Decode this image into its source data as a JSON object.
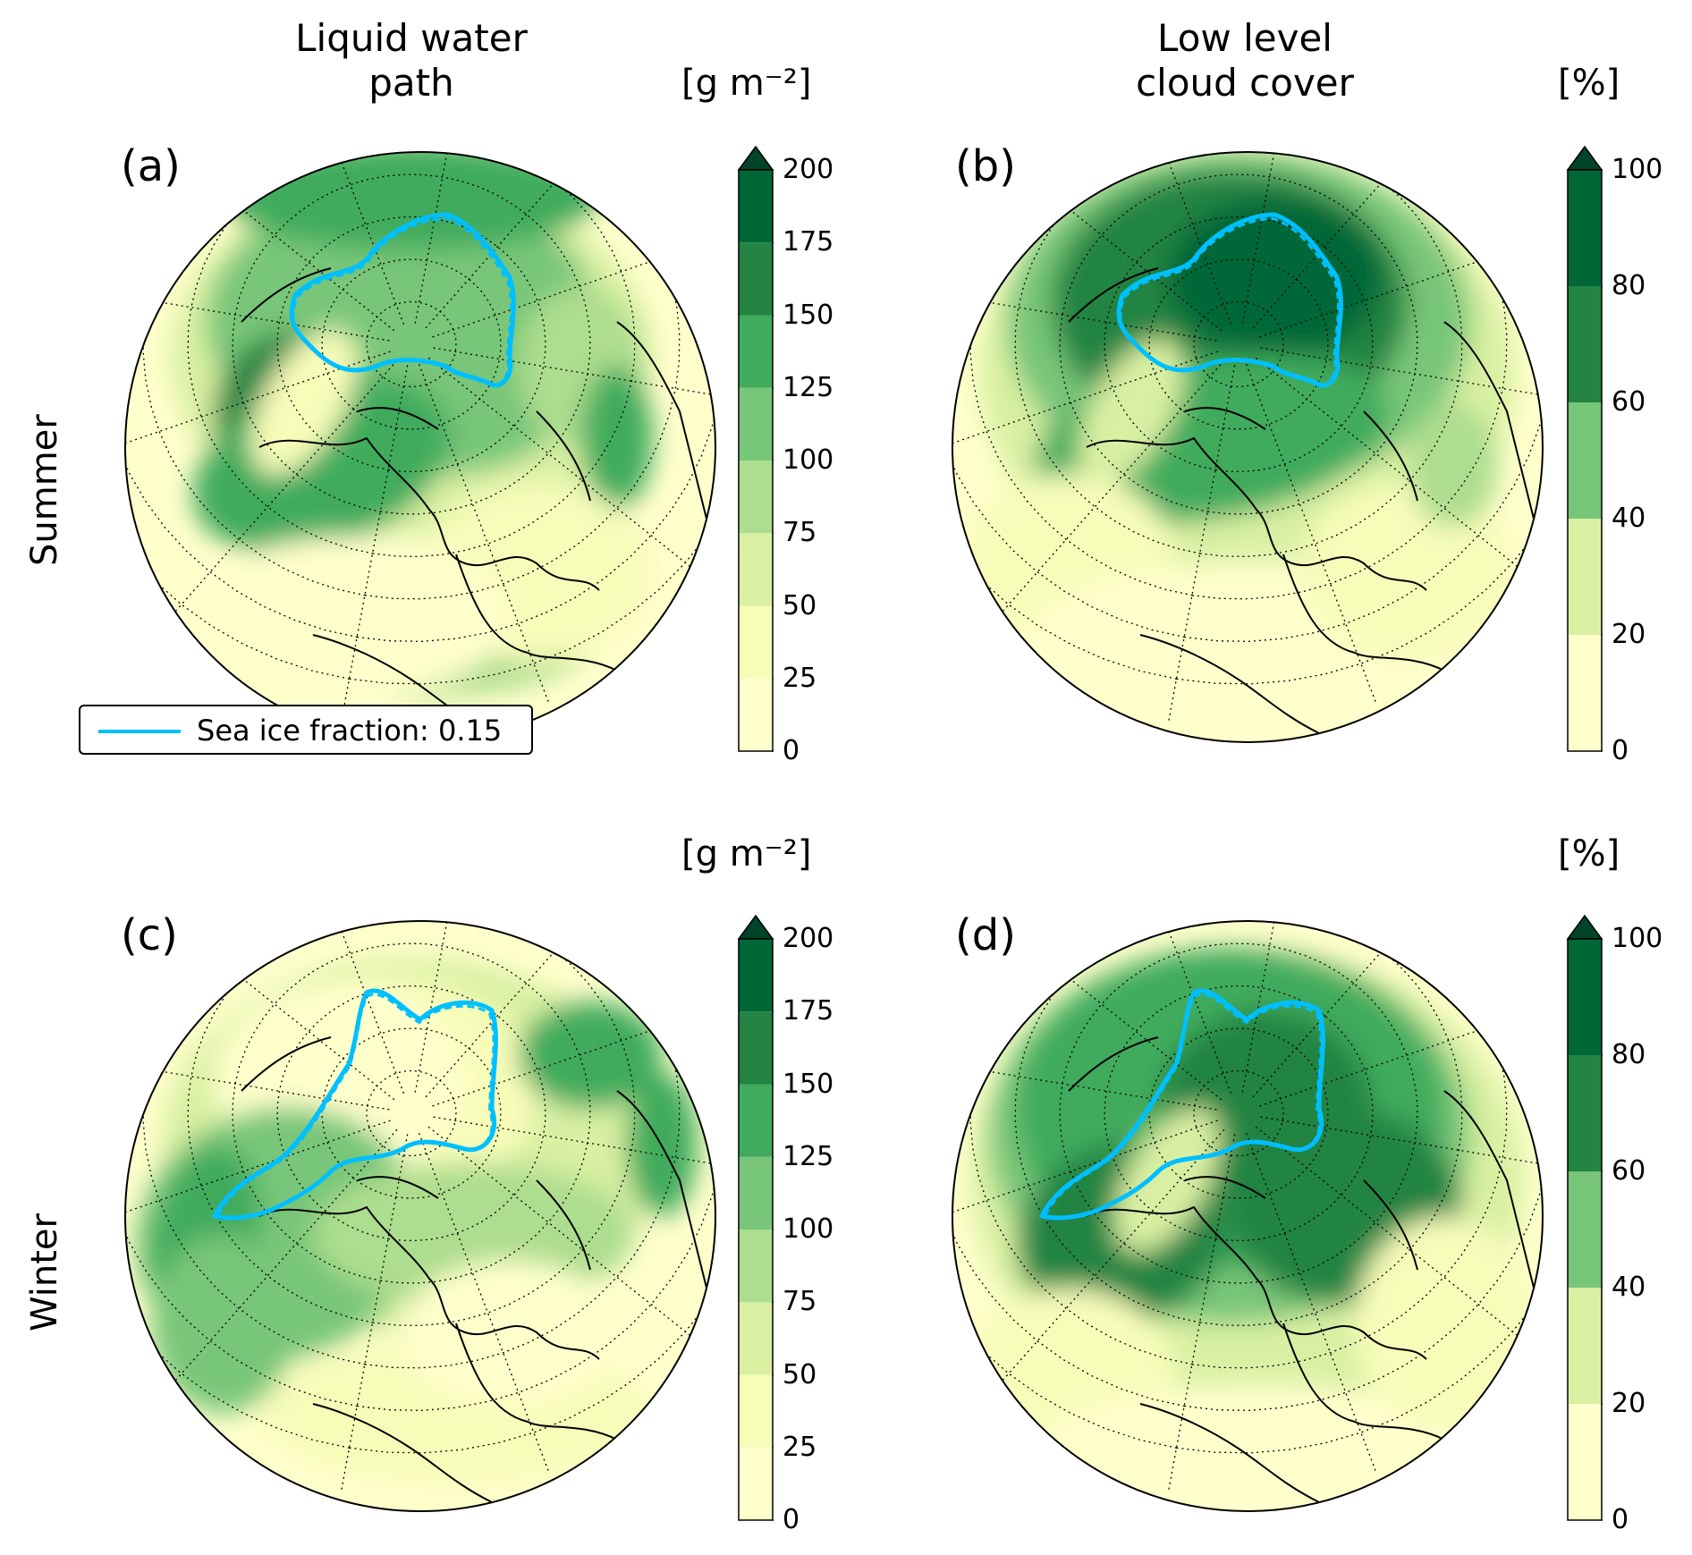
{
  "columns": [
    {
      "title_line1": "Liquid water",
      "title_line2": "path"
    },
    {
      "title_line1": "Low level",
      "title_line2": "cloud cover"
    }
  ],
  "rows": [
    "Summer",
    "Winter"
  ],
  "panels": [
    {
      "label": "(a)",
      "unit": "[g m⁻²]",
      "ticks": [
        "200",
        "175",
        "150",
        "125",
        "100",
        "75",
        "50",
        "25",
        "0"
      ],
      "field": "lwp_summer"
    },
    {
      "label": "(b)",
      "unit": "[%]",
      "ticks": [
        "100",
        "80",
        "60",
        "40",
        "20",
        "0"
      ],
      "field": "llc_summer"
    },
    {
      "label": "(c)",
      "unit": "[g m⁻²]",
      "ticks": [
        "200",
        "175",
        "150",
        "125",
        "100",
        "75",
        "50",
        "25",
        "0"
      ],
      "field": "lwp_winter"
    },
    {
      "label": "(d)",
      "unit": "[%]",
      "ticks": [
        "100",
        "80",
        "60",
        "40",
        "20",
        "0"
      ],
      "field": "llc_winter"
    }
  ],
  "legend": {
    "label": "Sea ice fraction: 0.15",
    "color": "#00bfff"
  },
  "colormap": [
    "#ffffcc",
    "#f7fcb9",
    "#d9f0a3",
    "#addd8e",
    "#78c679",
    "#41ab5d",
    "#238443",
    "#006837",
    "#004529"
  ],
  "ice_color": "#00bfff"
}
